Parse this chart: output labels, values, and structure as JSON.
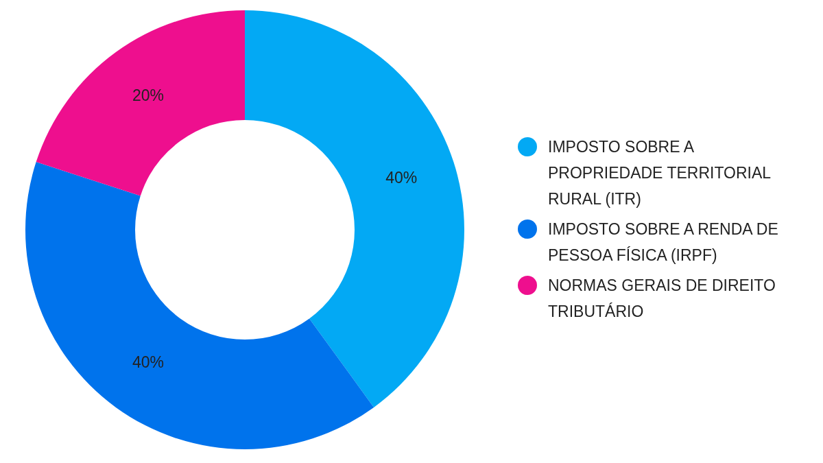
{
  "chart_data": {
    "type": "donut",
    "categories": [
      "IMPOSTO SOBRE A PROPRIEDADE TERRITORIAL RURAL (ITR)",
      "IMPOSTO SOBRE A RENDA DE PESSOA FÍSICA (IRPF)",
      "NORMAS GERAIS DE DIREITO TRIBUTÁRIO"
    ],
    "values": [
      40,
      40,
      20
    ],
    "colors": [
      "#03a9f4",
      "#0073ec",
      "#ee0f8e"
    ],
    "value_labels": [
      "40%",
      "40%",
      "20%"
    ],
    "legend": "right"
  }
}
